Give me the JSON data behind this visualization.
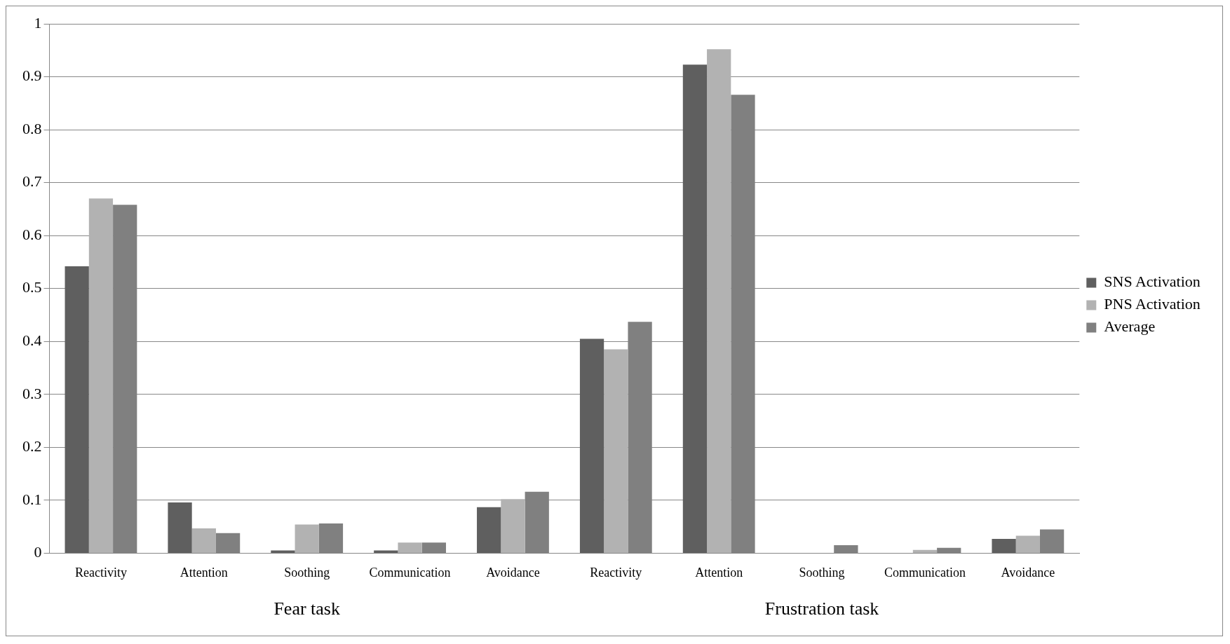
{
  "chart_data": {
    "type": "bar",
    "categories": [
      "Reactivity",
      "Attention",
      "Soothing",
      "Communication",
      "Avoidance",
      "Reactivity",
      "Attention",
      "Soothing",
      "Communication",
      "Avoidance"
    ],
    "series": [
      {
        "name": "SNS Activation",
        "color": "#5f5f5f",
        "values": [
          0.542,
          0.096,
          0.005,
          0.005,
          0.087,
          0.405,
          0.923,
          0,
          0,
          0.027
        ]
      },
      {
        "name": "PNS Activation",
        "color": "#b2b2b2",
        "values": [
          0.67,
          0.047,
          0.054,
          0.02,
          0.102,
          0.385,
          0.952,
          0,
          0.006,
          0.033
        ]
      },
      {
        "name": "Average",
        "color": "#808080",
        "values": [
          0.658,
          0.038,
          0.056,
          0.02,
          0.116,
          0.437,
          0.866,
          0.015,
          0.01,
          0.045
        ]
      }
    ],
    "ylim": [
      0,
      1
    ],
    "yticks": [
      0,
      0.1,
      0.2,
      0.3,
      0.4,
      0.5,
      0.6,
      0.7,
      0.8,
      0.9,
      1
    ],
    "grid": "y",
    "legend": "right",
    "annotations": [
      "Fear task",
      "Frustration task"
    ]
  }
}
